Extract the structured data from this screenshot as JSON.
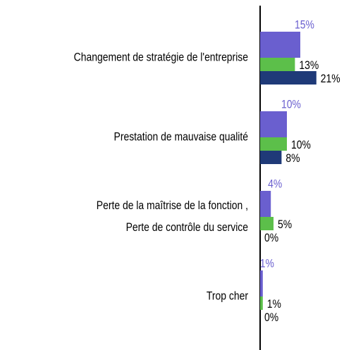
{
  "chart_data": {
    "type": "bar",
    "orientation": "horizontal",
    "categories": [
      "Changement de stratégie de l'entreprise",
      "Prestation de mauvaise qualité",
      "Perte de la maîtrise de la fonction ,\nPerte de contrôle du service",
      "Trop cher"
    ],
    "series": [
      {
        "color": "#6a5fcf",
        "values": [
          15,
          10,
          4,
          1
        ],
        "value_labels": [
          "15%",
          "10%",
          "4%",
          "1%"
        ]
      },
      {
        "color": "#5cbf4a",
        "values": [
          13,
          10,
          5,
          1
        ],
        "value_labels": [
          "13%",
          "10%",
          "5%",
          "1%"
        ]
      },
      {
        "color": "#1f3a78",
        "values": [
          21,
          8,
          0,
          0
        ],
        "value_labels": [
          "21%",
          "8%",
          "0%",
          "0%"
        ]
      }
    ]
  }
}
